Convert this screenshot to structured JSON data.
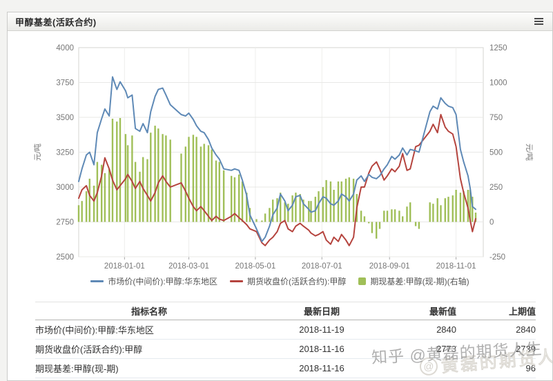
{
  "panel": {
    "title": "甲醇基差(活跃合约)"
  },
  "chart_data": {
    "type": "line+bar",
    "x": [
      "2017-11-20",
      "2017-11-23",
      "2017-11-27",
      "2017-11-30",
      "2017-12-04",
      "2017-12-07",
      "2017-12-11",
      "2017-12-14",
      "2017-12-18",
      "2017-12-21",
      "2017-12-25",
      "2017-12-28",
      "2018-01-02",
      "2018-01-04",
      "2018-01-08",
      "2018-01-11",
      "2018-01-15",
      "2018-01-18",
      "2018-01-22",
      "2018-01-25",
      "2018-01-29",
      "2018-02-01",
      "2018-02-05",
      "2018-02-08",
      "2018-02-12",
      "2018-02-22",
      "2018-02-26",
      "2018-03-01",
      "2018-03-05",
      "2018-03-08",
      "2018-03-12",
      "2018-03-15",
      "2018-03-19",
      "2018-03-22",
      "2018-03-26",
      "2018-03-29",
      "2018-04-02",
      "2018-04-09",
      "2018-04-12",
      "2018-04-16",
      "2018-04-19",
      "2018-04-23",
      "2018-04-26",
      "2018-05-02",
      "2018-05-07",
      "2018-05-10",
      "2018-05-14",
      "2018-05-17",
      "2018-05-21",
      "2018-05-24",
      "2018-05-28",
      "2018-05-31",
      "2018-06-04",
      "2018-06-07",
      "2018-06-11",
      "2018-06-14",
      "2018-06-19",
      "2018-06-21",
      "2018-06-25",
      "2018-06-28",
      "2018-07-02",
      "2018-07-05",
      "2018-07-09",
      "2018-07-12",
      "2018-07-16",
      "2018-07-19",
      "2018-07-23",
      "2018-07-26",
      "2018-07-30",
      "2018-08-02",
      "2018-08-06",
      "2018-08-09",
      "2018-08-13",
      "2018-08-16",
      "2018-08-20",
      "2018-08-23",
      "2018-08-27",
      "2018-08-30",
      "2018-09-03",
      "2018-09-06",
      "2018-09-10",
      "2018-09-13",
      "2018-09-17",
      "2018-09-20",
      "2018-09-25",
      "2018-09-28",
      "2018-10-08",
      "2018-10-11",
      "2018-10-15",
      "2018-10-18",
      "2018-10-22",
      "2018-10-25",
      "2018-10-29",
      "2018-11-01",
      "2018-11-05",
      "2018-11-08",
      "2018-11-12",
      "2018-11-14",
      "2018-11-16",
      "2018-11-19"
    ],
    "series": [
      {
        "name": "市场价(中间价):甲醇:华东地区",
        "type": "line",
        "axis": "left",
        "color": "#5e89b6",
        "values": [
          3040,
          3130,
          3230,
          3250,
          3160,
          3390,
          3490,
          3560,
          3510,
          3790,
          3700,
          3755,
          3690,
          3640,
          3660,
          3420,
          3400,
          3455,
          3390,
          3540,
          3650,
          3700,
          3710,
          3660,
          3590,
          3520,
          3510,
          3530,
          3485,
          3440,
          3400,
          3390,
          3340,
          3280,
          3230,
          3200,
          3130,
          3120,
          3130,
          3120,
          3050,
          2940,
          2800,
          2700,
          2610,
          2640,
          2720,
          2800,
          2850,
          2950,
          2900,
          2830,
          2870,
          2930,
          2940,
          2880,
          2840,
          2820,
          2830,
          2880,
          2930,
          2920,
          2880,
          2870,
          2900,
          2950,
          2930,
          2900,
          2950,
          3050,
          3080,
          3040,
          3090,
          3070,
          3060,
          3080,
          3130,
          3160,
          3220,
          3200,
          3230,
          3280,
          3230,
          3270,
          3260,
          3250,
          3540,
          3580,
          3560,
          3640,
          3600,
          3580,
          3570,
          3520,
          3270,
          3180,
          3080,
          2990,
          2860,
          2840
        ]
      },
      {
        "name": "期货收盘价(活跃合约):甲醇",
        "type": "line",
        "axis": "left",
        "color": "#b5443e",
        "values": [
          2920,
          2980,
          3010,
          2940,
          2900,
          2960,
          3080,
          3210,
          3130,
          3050,
          2980,
          3010,
          3060,
          3090,
          3040,
          2990,
          3040,
          2990,
          2940,
          2900,
          2960,
          3030,
          3080,
          3040,
          3000,
          3030,
          2970,
          2920,
          2860,
          2830,
          2860,
          2830,
          2790,
          2760,
          2790,
          2770,
          2760,
          2790,
          2810,
          2780,
          2760,
          2730,
          2700,
          2680,
          2600,
          2580,
          2620,
          2640,
          2680,
          2740,
          2760,
          2700,
          2680,
          2720,
          2740,
          2720,
          2690,
          2670,
          2650,
          2660,
          2680,
          2620,
          2590,
          2640,
          2610,
          2660,
          2620,
          2580,
          2640,
          2850,
          3000,
          3000,
          3100,
          3150,
          3180,
          3130,
          3050,
          3080,
          3130,
          3110,
          3150,
          3240,
          3120,
          3130,
          3290,
          3300,
          3400,
          3450,
          3390,
          3520,
          3430,
          3400,
          3380,
          3290,
          3060,
          2960,
          2850,
          2760,
          2680,
          2773
        ]
      },
      {
        "name": "期现基差:甲醇(现-期)(右轴)",
        "type": "bar",
        "axis": "right",
        "color": "#a0bf58",
        "values": [
          120,
          150,
          220,
          310,
          260,
          430,
          410,
          350,
          380,
          740,
          720,
          745,
          630,
          550,
          620,
          430,
          360,
          465,
          450,
          640,
          690,
          670,
          630,
          620,
          590,
          490,
          540,
          610,
          625,
          610,
          540,
          560,
          550,
          520,
          440,
          430,
          370,
          330,
          320,
          340,
          290,
          210,
          100,
          20,
          10,
          60,
          100,
          160,
          170,
          210,
          140,
          130,
          190,
          210,
          200,
          160,
          150,
          150,
          180,
          220,
          250,
          300,
          290,
          230,
          290,
          290,
          310,
          320,
          310,
          200,
          80,
          40,
          -10,
          -80,
          -120,
          -50,
          80,
          80,
          90,
          90,
          80,
          40,
          110,
          140,
          -30,
          -50,
          140,
          130,
          170,
          120,
          170,
          180,
          190,
          230,
          210,
          220,
          230,
          230,
          180,
          67
        ]
      }
    ],
    "left_axis": {
      "title": "元/吨",
      "min": 2500,
      "max": 4000,
      "ticks": [
        4000,
        3750,
        3500,
        3250,
        3000,
        2750,
        2500
      ]
    },
    "right_axis": {
      "title": "元/吨",
      "min": -250,
      "max": 1250,
      "ticks": [
        1250,
        1000,
        750,
        500,
        250,
        0,
        -250
      ]
    },
    "x_ticks": [
      "2018-01-01",
      "2018-03-01",
      "2018-05-01",
      "2018-07-01",
      "2018-09-01",
      "2018-11-01"
    ],
    "grid": true,
    "legend_position": "bottom"
  },
  "table": {
    "headers": [
      "指标名称",
      "最新日期",
      "最新值",
      "上期值"
    ],
    "rows": [
      {
        "name": "市场价(中间价):甲醇:华东地区",
        "date": "2018-11-19",
        "latest": "2840",
        "prev": "2840"
      },
      {
        "name": "期货收盘价(活跃合约):甲醇",
        "date": "2018-11-16",
        "latest": "2773",
        "prev": "2739"
      },
      {
        "name": "期现基差:甲醇(现-期)",
        "date": "2018-11-16",
        "latest": "",
        "prev": "96"
      }
    ]
  },
  "watermark": {
    "main": "知乎 @黄磊的期货人生",
    "ghost": "黄磊的期货人生",
    "logo": "@"
  }
}
